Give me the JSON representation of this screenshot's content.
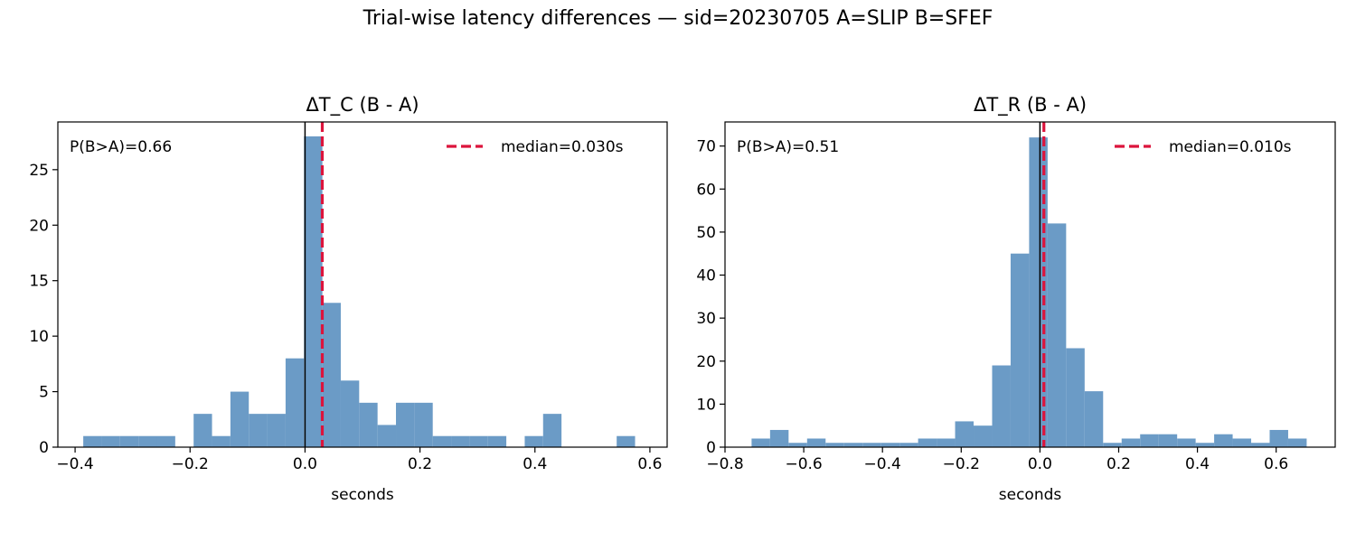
{
  "figure": {
    "suptitle": "Trial-wise latency differences — sid=20230705  A=SLIP  B=SFEF"
  },
  "colors": {
    "bar": "#6b9bc6",
    "median": "#dc143c",
    "zero_line": "#000000"
  },
  "chart_data": [
    {
      "type": "bar",
      "title": "ΔT_C (B - A)",
      "xlabel": "seconds",
      "ylabel": "",
      "xlim": [
        -0.43,
        0.63
      ],
      "ylim": [
        0,
        29.3
      ],
      "xticks": [
        -0.4,
        -0.2,
        0.0,
        0.2,
        0.4,
        0.6
      ],
      "xtick_labels": [
        "−0.4",
        "−0.2",
        "0.0",
        "0.2",
        "0.4",
        "0.6"
      ],
      "yticks": [
        0,
        5,
        10,
        15,
        20,
        25
      ],
      "ytick_labels": [
        "0",
        "5",
        "10",
        "15",
        "20",
        "25"
      ],
      "bin_edges": [
        -0.3858,
        -0.3538,
        -0.3218,
        -0.2898,
        -0.2578,
        -0.2258,
        -0.1938,
        -0.1618,
        -0.1298,
        -0.0978,
        -0.0658,
        -0.0338,
        -0.0018,
        0.0302,
        0.0622,
        0.0942,
        0.1262,
        0.1582,
        0.1902,
        0.2222,
        0.2542,
        0.2862,
        0.3182,
        0.3502,
        0.3822,
        0.4142,
        0.4462,
        0.4782,
        0.5102,
        0.5422,
        0.5742
      ],
      "counts": [
        1,
        1,
        1,
        1,
        1,
        0,
        3,
        1,
        5,
        3,
        3,
        8,
        28,
        13,
        6,
        4,
        2,
        4,
        4,
        1,
        1,
        1,
        1,
        0,
        1,
        3,
        0,
        0,
        0,
        1
      ],
      "median": 0.03,
      "legend": {
        "label": "median=0.030s",
        "position": "top-right"
      },
      "annotation": "P(B>A)=0.66",
      "grid": false
    },
    {
      "type": "bar",
      "title": "ΔT_R (B - A)",
      "xlabel": "seconds",
      "ylabel": "",
      "xlim": [
        -0.8,
        0.75
      ],
      "ylim": [
        0,
        75.6
      ],
      "xticks": [
        -0.8,
        -0.6,
        -0.4,
        -0.2,
        0.0,
        0.2,
        0.4,
        0.6
      ],
      "xtick_labels": [
        "−0.8",
        "−0.6",
        "−0.4",
        "−0.2",
        "0.0",
        "0.2",
        "0.4",
        "0.6"
      ],
      "yticks": [
        0,
        10,
        20,
        30,
        40,
        50,
        60,
        70
      ],
      "ytick_labels": [
        "0",
        "10",
        "20",
        "30",
        "40",
        "50",
        "60",
        "70"
      ],
      "bin_edges": [
        -0.7325,
        -0.6855,
        -0.6385,
        -0.5915,
        -0.5445,
        -0.4975,
        -0.4505,
        -0.4035,
        -0.3565,
        -0.3095,
        -0.2625,
        -0.2155,
        -0.1685,
        -0.1215,
        -0.0745,
        -0.0275,
        0.0195,
        0.0665,
        0.1135,
        0.1605,
        0.2075,
        0.2545,
        0.3015,
        0.3485,
        0.3955,
        0.4425,
        0.4895,
        0.5365,
        0.5835,
        0.6305,
        0.6775
      ],
      "counts": [
        2,
        4,
        1,
        2,
        1,
        1,
        1,
        1,
        1,
        2,
        2,
        6,
        5,
        19,
        45,
        72,
        52,
        23,
        13,
        1,
        2,
        3,
        3,
        2,
        1,
        3,
        2,
        1,
        4,
        2
      ],
      "median": 0.01,
      "legend": {
        "label": "median=0.010s",
        "position": "top-right"
      },
      "annotation": "P(B>A)=0.51",
      "grid": false
    }
  ]
}
